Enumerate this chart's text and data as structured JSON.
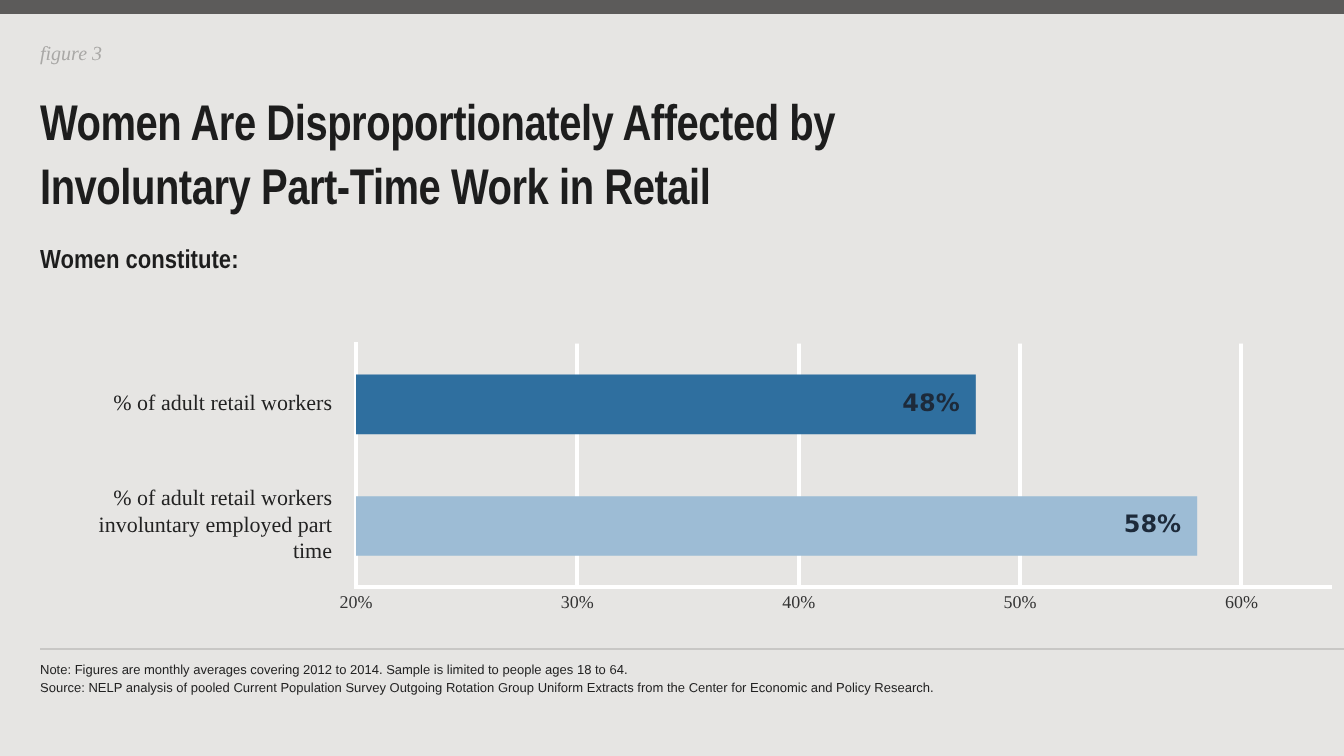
{
  "chart_data": {
    "type": "bar",
    "orientation": "horizontal",
    "title": "Women Are Disproportionately Affected by Involuntary Part-Time Work in Retail",
    "subtitle": "Women constitute:",
    "categories": [
      "% of adult retail workers",
      "% of adult retail workers involuntary employed part time"
    ],
    "values": [
      48,
      58
    ],
    "colors": [
      "#2f6f9f",
      "#9dbcd5"
    ],
    "value_labels": [
      "48%",
      "58%"
    ],
    "xlim": [
      20,
      64
    ],
    "xticks": [
      {
        "value": 20,
        "label": "20%"
      },
      {
        "value": 30,
        "label": "30%"
      },
      {
        "value": 40,
        "label": "40%"
      },
      {
        "value": 50,
        "label": "50%"
      },
      {
        "value": 60,
        "label": "60%"
      }
    ],
    "grid": "x",
    "annotations": [
      "figure 3",
      "Note: Figures are monthly averages covering 2012 to 2014.  Sample is limited to people ages 18 to 64.",
      "Source: NELP analysis of pooled Current Population Survey Outgoing Rotation Group Uniform Extracts from the Center for Economic and Policy Research."
    ]
  }
}
